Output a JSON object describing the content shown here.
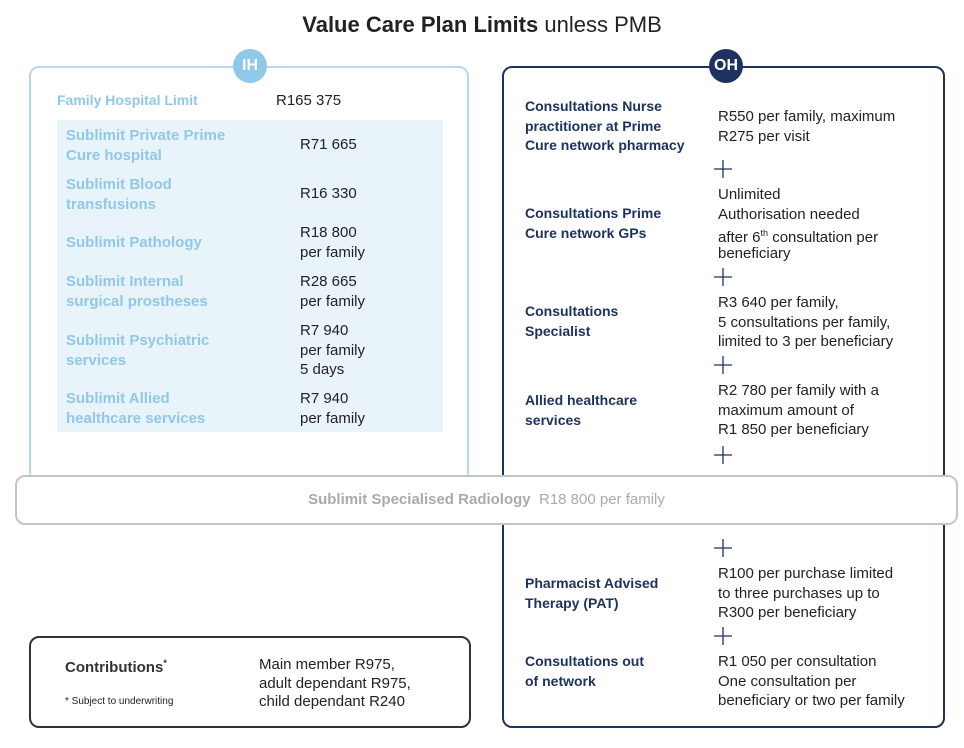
{
  "title": {
    "bold": "Value Care Plan Limits",
    "regular": "unless PMB"
  },
  "in_hospital": {
    "badge": "IH",
    "family_limit_label": "Family Hospital Limit",
    "family_limit_value": "R165 375",
    "sublimits": [
      {
        "label": [
          "Sublimit Private Prime",
          "Cure hospital"
        ],
        "value": [
          "R71 665"
        ]
      },
      {
        "label": [
          "Sublimit Blood",
          "transfusions"
        ],
        "value": [
          "R16 330"
        ]
      },
      {
        "label": [
          "Sublimit Pathology"
        ],
        "value": [
          "R18 800",
          "per family"
        ]
      },
      {
        "label": [
          "Sublimit Internal",
          "surgical prostheses"
        ],
        "value": [
          "R28 665",
          "per family"
        ]
      },
      {
        "label": [
          "Sublimit Psychiatric",
          "services"
        ],
        "value": [
          "R7 940",
          "per family",
          "5 days"
        ]
      },
      {
        "label": [
          "Sublimit Allied",
          "healthcare services"
        ],
        "value": [
          "R7 940",
          "per family"
        ]
      }
    ]
  },
  "out_of_hospital": {
    "badge": "OH",
    "items": [
      {
        "label": [
          "Consultations Nurse",
          "practitioner at Prime",
          "Cure network pharmacy"
        ],
        "value": [
          "R550 per family, maximum",
          "R275 per visit"
        ]
      },
      {
        "label": [
          "Consultations Prime",
          "Cure network GPs"
        ],
        "value": [
          "Unlimited",
          "Authorisation needed",
          {
            "before": "after 6",
            "sup": "th",
            "after": " consultation per"
          },
          "beneficiary"
        ]
      },
      {
        "label": [
          "Consultations",
          "Specialist"
        ],
        "value": [
          "R3 640 per family,",
          "5 consultations per family,",
          "limited to 3 per beneficiary"
        ]
      },
      {
        "label": [
          "Allied healthcare",
          "services"
        ],
        "value": [
          "R2 780 per family with a",
          "maximum amount of",
          "R1 850 per beneficiary"
        ]
      },
      {
        "label": [
          "Pharmacist Advised",
          "Therapy (PAT)"
        ],
        "value": [
          "R100 per purchase limited",
          "to three purchases up to",
          "R300 per beneficiary"
        ]
      },
      {
        "label": [
          "Consultations out",
          "of network"
        ],
        "value": [
          "R1 050 per consultation",
          "One consultation per",
          "beneficiary or two per family"
        ]
      }
    ]
  },
  "radiology": {
    "label": "Sublimit Specialised Radiology",
    "value": "R18 800 per family"
  },
  "contributions": {
    "label": "Contributions",
    "asterisk": "*",
    "note": "* Subject to underwriting",
    "value": [
      "Main member R975,",
      "adult dependant R975,",
      "child dependant R240"
    ]
  }
}
